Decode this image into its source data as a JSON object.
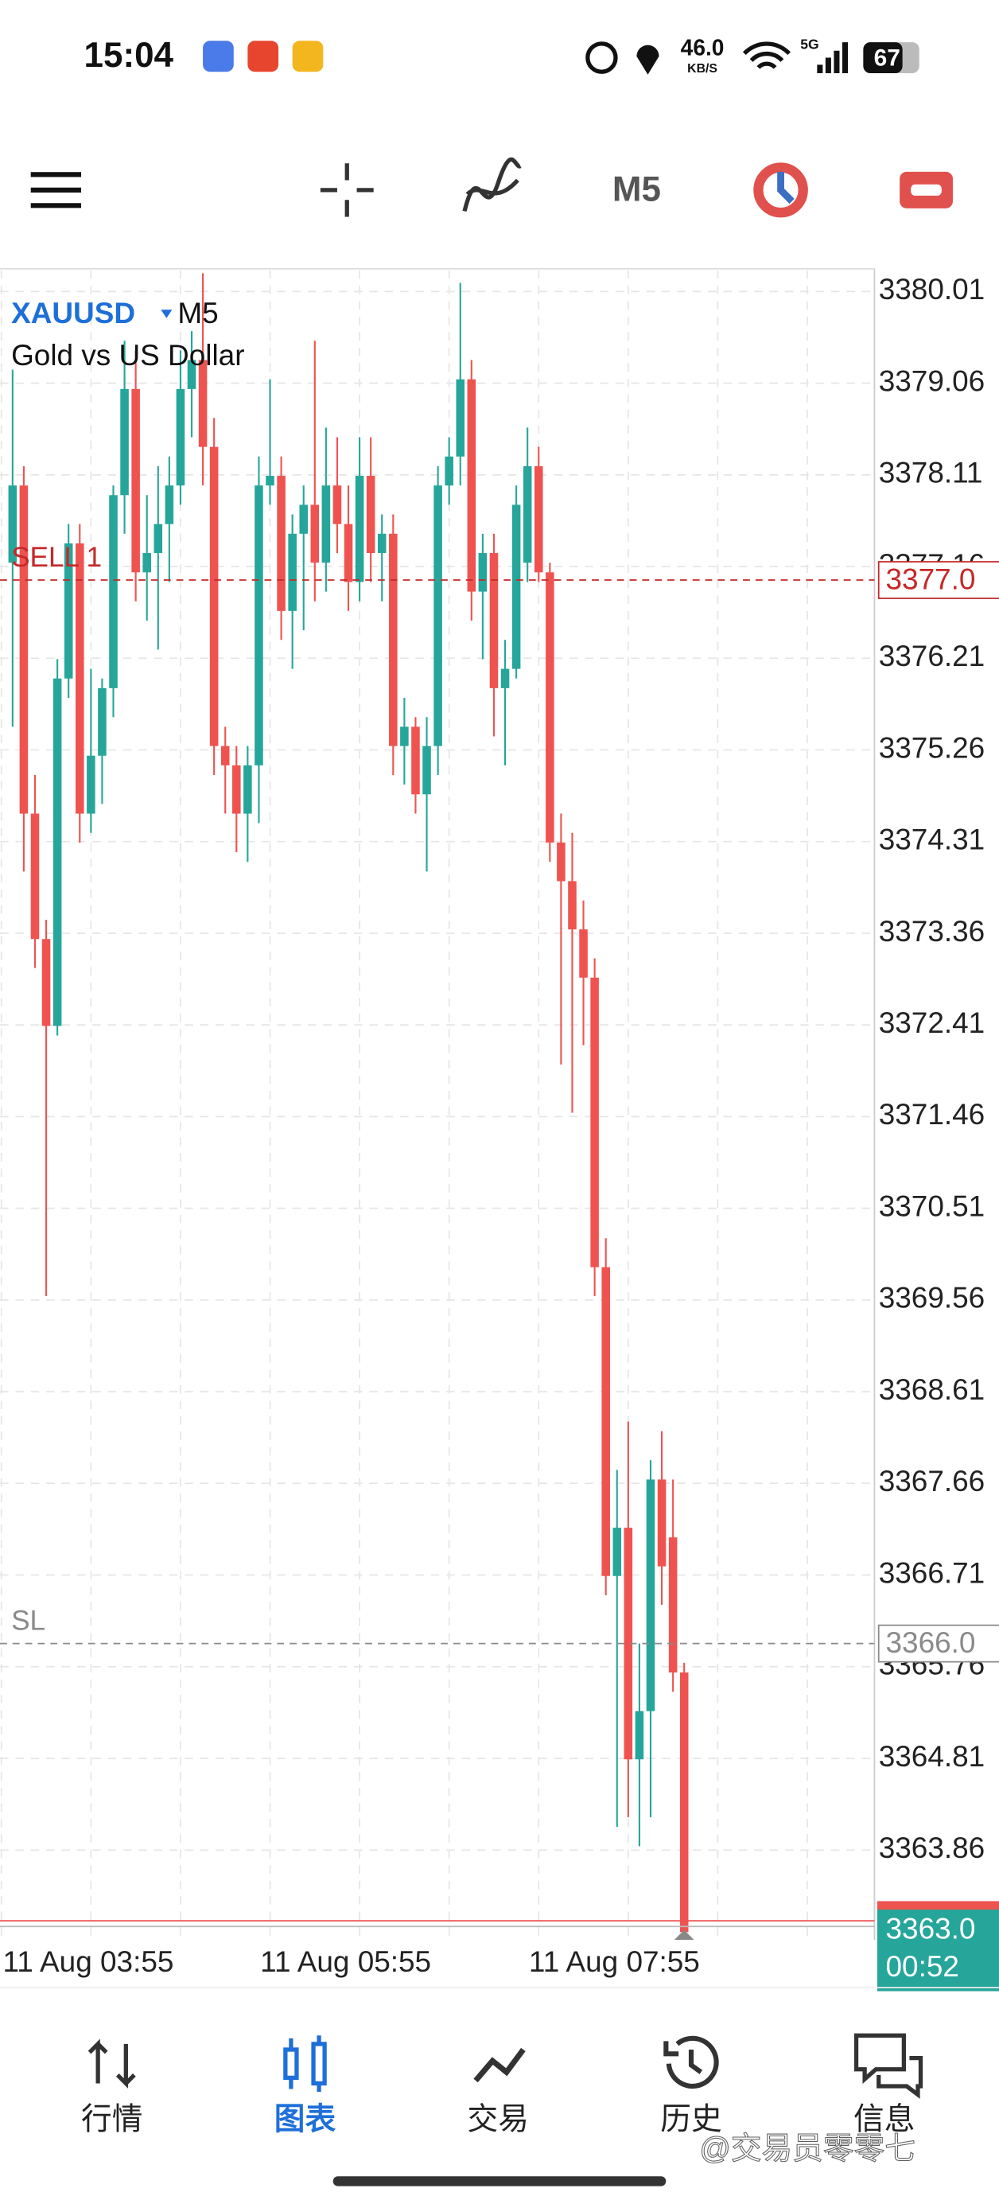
{
  "status_bar": {
    "time": "15:04",
    "speed": "46.0",
    "speed_unit": "KB/S",
    "network": "5G",
    "battery": "67"
  },
  "toolbar": {
    "timeframe": "M5"
  },
  "chart_data": {
    "type": "candlestick",
    "symbol": "XAUUSD",
    "timeframe": "M5",
    "description": "Gold vs US Dollar",
    "open": [
      3377.2,
      3378.0,
      3374.6,
      3373.3,
      3372.4,
      3376.0,
      3377.4,
      3374.6,
      3375.2,
      3375.9,
      3377.9,
      3379.0,
      3377.1,
      3377.3,
      3377.6,
      3378.0,
      3379.0,
      3379.3,
      3378.4,
      3375.3,
      3375.1,
      3374.6,
      3375.1,
      3378.0,
      3378.1,
      3376.7,
      3377.5,
      3377.8,
      3377.2,
      3378.0,
      3377.6,
      3377.0,
      3378.1,
      3377.3,
      3377.5,
      3375.3,
      3375.5,
      3374.8,
      3375.3,
      3378.0,
      3378.3,
      3379.1,
      3376.9,
      3377.3,
      3375.9,
      3376.1,
      3377.2,
      3378.2,
      3377.1,
      3374.3,
      3373.9,
      3373.4,
      3372.9,
      3369.9,
      3366.7,
      3367.2,
      3364.8,
      3365.3,
      3367.7,
      3367.1,
      3365.7
    ],
    "high": [
      3379.2,
      3378.2,
      3375.0,
      3373.5,
      3376.2,
      3377.6,
      3377.6,
      3376.1,
      3376.0,
      3378.0,
      3379.5,
      3379.4,
      3377.9,
      3378.2,
      3378.3,
      3379.4,
      3379.6,
      3380.2,
      3378.7,
      3375.5,
      3375.3,
      3375.3,
      3378.3,
      3379.1,
      3378.3,
      3377.7,
      3378.0,
      3379.5,
      3378.6,
      3378.5,
      3378.0,
      3378.5,
      3378.5,
      3377.7,
      3377.7,
      3375.8,
      3375.6,
      3375.6,
      3378.2,
      3378.5,
      3380.1,
      3379.3,
      3377.5,
      3377.5,
      3376.4,
      3378.0,
      3378.6,
      3378.4,
      3377.2,
      3374.6,
      3374.4,
      3373.7,
      3373.1,
      3370.2,
      3367.8,
      3368.3,
      3366.0,
      3367.9,
      3368.2,
      3367.7,
      3365.8
    ],
    "low": [
      3375.5,
      3374.0,
      3373.0,
      3369.6,
      3372.3,
      3375.8,
      3374.3,
      3374.4,
      3374.7,
      3375.6,
      3377.5,
      3376.8,
      3376.6,
      3376.3,
      3377.0,
      3377.8,
      3378.5,
      3378.0,
      3375.0,
      3374.6,
      3374.2,
      3374.1,
      3374.5,
      3377.8,
      3376.4,
      3376.1,
      3376.5,
      3376.8,
      3376.9,
      3377.3,
      3376.7,
      3376.8,
      3377.0,
      3376.8,
      3375.0,
      3374.9,
      3374.6,
      3374.0,
      3375.0,
      3377.8,
      3378.0,
      3376.6,
      3376.2,
      3375.4,
      3375.1,
      3376.0,
      3377.0,
      3377.0,
      3374.1,
      3372.0,
      3371.5,
      3372.2,
      3369.6,
      3366.5,
      3364.1,
      3364.2,
      3363.9,
      3364.2,
      3366.4,
      3365.5,
      3362.95
    ],
    "close": [
      3378.0,
      3374.6,
      3373.3,
      3372.4,
      3376.0,
      3377.4,
      3374.6,
      3375.2,
      3375.9,
      3377.9,
      3379.0,
      3377.1,
      3377.3,
      3377.6,
      3378.0,
      3379.0,
      3379.3,
      3378.4,
      3375.3,
      3375.1,
      3374.6,
      3375.1,
      3378.0,
      3378.1,
      3376.7,
      3377.5,
      3377.8,
      3377.2,
      3378.0,
      3377.6,
      3377.0,
      3378.1,
      3377.3,
      3377.5,
      3375.3,
      3375.5,
      3374.8,
      3375.3,
      3378.0,
      3378.3,
      3379.1,
      3376.9,
      3377.3,
      3375.9,
      3376.1,
      3377.8,
      3378.2,
      3377.1,
      3374.3,
      3373.9,
      3373.4,
      3372.9,
      3369.9,
      3366.7,
      3367.2,
      3364.8,
      3365.3,
      3367.7,
      3366.8,
      3365.7,
      3363.01
    ],
    "up_color": "#26a69a",
    "down_color": "#ef5350",
    "ylim": [
      3362.93,
      3380.23
    ],
    "yticks": [
      3380.01,
      3379.06,
      3378.11,
      3377.16,
      3376.21,
      3375.26,
      3374.31,
      3373.36,
      3372.41,
      3371.46,
      3370.51,
      3369.56,
      3368.61,
      3367.66,
      3366.71,
      3365.76,
      3364.81,
      3363.86
    ],
    "xticks": [
      {
        "value": -1,
        "label": "11 Aug 03:55"
      },
      {
        "value": 23,
        "label": "11 Aug 05:55"
      },
      {
        "value": 47,
        "label": "11 Aug 07:55"
      }
    ],
    "grid": true,
    "lines": [
      {
        "name": "SELL 1",
        "value": 3377.02,
        "label": "3377.0",
        "color": "#c62828"
      },
      {
        "name": "SL",
        "value": 3366.0,
        "label": "3366.0",
        "color": "#8a8a8a"
      }
    ],
    "last_price": 3363.01,
    "last_price_label": "3363.0",
    "countdown": "00:52"
  },
  "tabs": [
    "行情",
    "图表",
    "交易",
    "历史",
    "信息"
  ],
  "watermark": "@交易员零零七"
}
